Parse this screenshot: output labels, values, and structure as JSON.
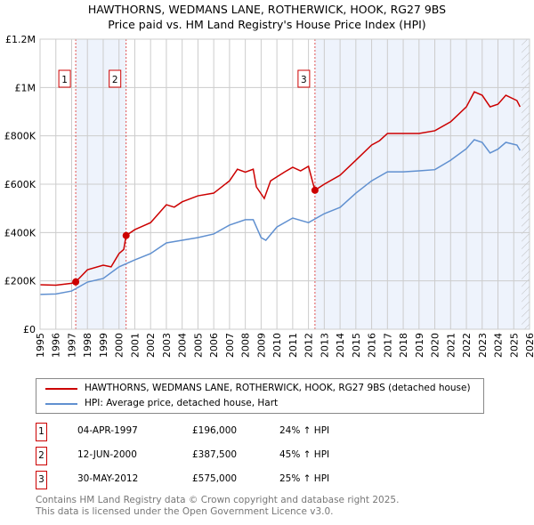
{
  "title": "HAWTHORNS, WEDMANS LANE, ROTHERWICK, HOOK, RG27 9BS",
  "subtitle": "Price paid vs. HM Land Registry's House Price Index (HPI)",
  "colors": {
    "property": "#cc0000",
    "hpi": "#6090d0",
    "shade": "#eef3fc",
    "grid": "#cccccc"
  },
  "chart_data": {
    "type": "line",
    "xlim": [
      1995,
      2026
    ],
    "ylim": [
      0,
      1200000
    ],
    "x_ticks": [
      "1995",
      "1996",
      "1997",
      "1998",
      "1999",
      "2000",
      "2001",
      "2002",
      "2003",
      "2004",
      "2005",
      "2006",
      "2007",
      "2008",
      "2009",
      "2010",
      "2011",
      "2012",
      "2013",
      "2014",
      "2015",
      "2016",
      "2017",
      "2018",
      "2019",
      "2020",
      "2021",
      "2022",
      "2023",
      "2024",
      "2025",
      "2026"
    ],
    "y_ticks": [
      {
        "v": 0,
        "label": "£0"
      },
      {
        "v": 200000,
        "label": "£200K"
      },
      {
        "v": 400000,
        "label": "£400K"
      },
      {
        "v": 600000,
        "label": "£600K"
      },
      {
        "v": 800000,
        "label": "£800K"
      },
      {
        "v": 1000000,
        "label": "£1M"
      },
      {
        "v": 1200000,
        "label": "£1.2M"
      }
    ],
    "series": [
      {
        "name": "HAWTHORNS, WEDMANS LANE, ROTHERWICK, HOOK, RG27 9BS (detached house)",
        "color": "#cc0000",
        "points": [
          [
            1995,
            184000
          ],
          [
            1996,
            182000
          ],
          [
            1997,
            190000
          ],
          [
            1997.26,
            196000
          ],
          [
            1998,
            246000
          ],
          [
            1999,
            265000
          ],
          [
            1999.5,
            258000
          ],
          [
            2000,
            313000
          ],
          [
            2000.3,
            330000
          ],
          [
            2000.45,
            387500
          ],
          [
            2001,
            412000
          ],
          [
            2002,
            441000
          ],
          [
            2003,
            515000
          ],
          [
            2003.5,
            505000
          ],
          [
            2004,
            527000
          ],
          [
            2005,
            552000
          ],
          [
            2006,
            563000
          ],
          [
            2007,
            614000
          ],
          [
            2007.5,
            662000
          ],
          [
            2008,
            650000
          ],
          [
            2008.5,
            662000
          ],
          [
            2008.7,
            589000
          ],
          [
            2009.2,
            541000
          ],
          [
            2009.6,
            614000
          ],
          [
            2010.5,
            651000
          ],
          [
            2011,
            670000
          ],
          [
            2011.5,
            655000
          ],
          [
            2012,
            674000
          ],
          [
            2012.3,
            600000
          ],
          [
            2012.41,
            575000
          ],
          [
            2013,
            600000
          ],
          [
            2014,
            637000
          ],
          [
            2015,
            699000
          ],
          [
            2016,
            762000
          ],
          [
            2016.5,
            780000
          ],
          [
            2017,
            810000
          ],
          [
            2018,
            810000
          ],
          [
            2019,
            810000
          ],
          [
            2020,
            821000
          ],
          [
            2021,
            858000
          ],
          [
            2022,
            920000
          ],
          [
            2022.5,
            982000
          ],
          [
            2023,
            968000
          ],
          [
            2023.5,
            920000
          ],
          [
            2024,
            931000
          ],
          [
            2024.5,
            968000
          ],
          [
            2025.2,
            946000
          ],
          [
            2025.4,
            920000
          ]
        ]
      },
      {
        "name": "HPI: Average price, detached house, Hart",
        "color": "#6090d0",
        "points": [
          [
            1995,
            144000
          ],
          [
            1996,
            146000
          ],
          [
            1997,
            158000
          ],
          [
            1998,
            195000
          ],
          [
            1999,
            210000
          ],
          [
            2000,
            258000
          ],
          [
            2001,
            287000
          ],
          [
            2002,
            313000
          ],
          [
            2003,
            357000
          ],
          [
            2004,
            368000
          ],
          [
            2005,
            379000
          ],
          [
            2006,
            394000
          ],
          [
            2007,
            431000
          ],
          [
            2008,
            453000
          ],
          [
            2008.5,
            453000
          ],
          [
            2009,
            379000
          ],
          [
            2009.3,
            368000
          ],
          [
            2010,
            423000
          ],
          [
            2011,
            460000
          ],
          [
            2012,
            441000
          ],
          [
            2013,
            478000
          ],
          [
            2014,
            504000
          ],
          [
            2015,
            563000
          ],
          [
            2016,
            614000
          ],
          [
            2017,
            651000
          ],
          [
            2018,
            651000
          ],
          [
            2019,
            655000
          ],
          [
            2020,
            660000
          ],
          [
            2021,
            699000
          ],
          [
            2022,
            747000
          ],
          [
            2022.5,
            784000
          ],
          [
            2023,
            773000
          ],
          [
            2023.5,
            729000
          ],
          [
            2024,
            745000
          ],
          [
            2024.5,
            773000
          ],
          [
            2025.2,
            762000
          ],
          [
            2025.4,
            740000
          ]
        ]
      }
    ],
    "sales": [
      {
        "id": "1",
        "x": 1997.26,
        "price": 196000,
        "date": "04-APR-1997",
        "price_label": "£196,000",
        "hpi": "24% ↑ HPI"
      },
      {
        "id": "2",
        "x": 2000.45,
        "price": 387500,
        "date": "12-JUN-2000",
        "price_label": "£387,500",
        "hpi": "45% ↑ HPI"
      },
      {
        "id": "3",
        "x": 2012.41,
        "price": 575000,
        "date": "30-MAY-2012",
        "price_label": "£575,000",
        "hpi": "25% ↑ HPI"
      }
    ],
    "shaded": [
      [
        1997.26,
        2000.45
      ],
      [
        2012.41,
        2026
      ]
    ],
    "hatched_from": 2025.5
  },
  "legend": {
    "property": "HAWTHORNS, WEDMANS LANE, ROTHERWICK, HOOK, RG27 9BS (detached house)",
    "hpi": "HPI: Average price, detached house, Hart"
  },
  "footer": {
    "line1": "Contains HM Land Registry data © Crown copyright and database right 2025.",
    "line2": "This data is licensed under the Open Government Licence v3.0."
  }
}
